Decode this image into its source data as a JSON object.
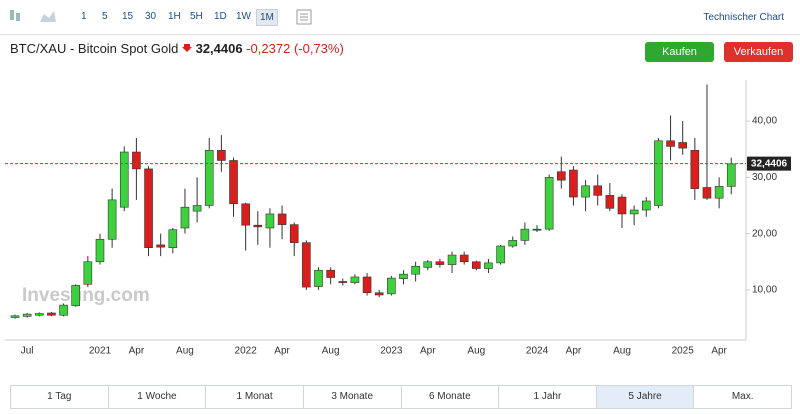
{
  "toolbar": {
    "intervals": [
      "1",
      "5",
      "15",
      "30",
      "1H",
      "5H",
      "1D",
      "1W",
      "1M"
    ],
    "selected": 8,
    "link": "Technischer Chart"
  },
  "header": {
    "title": "BTC/XAU - Bitcoin Spot Gold",
    "price": "32,4406",
    "change": "-0,2372",
    "change_pct": "(-0,73%)"
  },
  "buttons": {
    "buy": "Kaufen",
    "sell": "Verkaufen"
  },
  "chart_data": {
    "type": "candlestick",
    "watermark": "Investing.com",
    "categories": [
      null,
      "Jul",
      null,
      null,
      null,
      null,
      null,
      "2021",
      null,
      null,
      "Apr",
      null,
      null,
      null,
      "Aug",
      null,
      null,
      null,
      null,
      "2022",
      null,
      null,
      "Apr",
      null,
      null,
      null,
      "Aug",
      null,
      null,
      null,
      null,
      "2023",
      null,
      null,
      "Apr",
      null,
      null,
      null,
      "Aug",
      null,
      null,
      null,
      null,
      "2024",
      null,
      null,
      "Apr",
      null,
      null,
      null,
      "Aug",
      null,
      null,
      null,
      null,
      "2025",
      null,
      null,
      "Apr",
      null
    ],
    "open": [
      5.1,
      5.3,
      5.5,
      5.9,
      5.5,
      7.2,
      11,
      15,
      19,
      24.7,
      34.5,
      31.5,
      18,
      17.5,
      21,
      24,
      25,
      34.8,
      33,
      25.3,
      21.5,
      21,
      23.5,
      21.6,
      18.4,
      10.6,
      13.5,
      11.5,
      11.3,
      12.3,
      9.5,
      9.3,
      12,
      12.8,
      14,
      15,
      14.5,
      16.2,
      15,
      13.8,
      14.8,
      17.8,
      18.8,
      20.8,
      20.8,
      31,
      31.3,
      26.5,
      28.5,
      26.8,
      26.5,
      23.5,
      24.2,
      25,
      36.5,
      36.2,
      34.8,
      28.2,
      26.3,
      28.4
    ],
    "high": [
      5.6,
      5.9,
      6,
      6.1,
      7.6,
      11,
      16,
      20,
      28,
      35.5,
      37,
      32,
      20,
      21,
      28,
      30,
      37,
      37.5,
      33.5,
      25.5,
      24,
      24.5,
      25,
      22,
      18.8,
      14,
      14,
      12,
      12.8,
      13,
      10,
      12.5,
      13.5,
      15,
      15.3,
      15.5,
      16.8,
      16.8,
      15.2,
      15.5,
      18,
      19.5,
      22,
      21.5,
      30.5,
      33.7,
      32,
      29.5,
      30.5,
      29,
      27,
      25,
      26.5,
      37,
      41,
      40,
      37,
      46.5,
      30,
      33.5
    ],
    "low": [
      4.9,
      5.1,
      5.3,
      5.3,
      5.3,
      7,
      10.5,
      14.5,
      17.5,
      24,
      26,
      16,
      16,
      16.5,
      20,
      22,
      24.5,
      31,
      23,
      17,
      18,
      17.5,
      19,
      16,
      10,
      10,
      11,
      10.8,
      11,
      9,
      8.7,
      9,
      11,
      11.5,
      13.5,
      14,
      13,
      14.5,
      13.5,
      13,
      14.5,
      17.5,
      18,
      20.3,
      20.5,
      28,
      25,
      24,
      25,
      24,
      21,
      21.5,
      23,
      24.5,
      33,
      34,
      26,
      26,
      24.5,
      27
    ],
    "close": [
      5.4,
      5.7,
      5.8,
      5.5,
      7.3,
      10.8,
      15,
      19,
      26,
      34.5,
      31.5,
      17.5,
      17.6,
      20.7,
      24.7,
      25,
      34.8,
      33,
      25.3,
      21.5,
      21.2,
      23.5,
      21.6,
      18.4,
      10.5,
      13.5,
      12.2,
      11.3,
      12.3,
      9.5,
      9.1,
      12.1,
      12.8,
      14.2,
      15,
      14.5,
      16.2,
      15,
      13.8,
      14.8,
      17.8,
      18.8,
      20.8,
      20.6,
      30,
      29.5,
      26.5,
      28.5,
      26.8,
      24.5,
      23.5,
      24.2,
      25.8,
      36.5,
      35.5,
      35.2,
      28,
      26.3,
      28.4,
      32.4
    ],
    "up_color": "#3ed13e",
    "down_color": "#d91e1e",
    "ylim": [
      1.1,
      47.3
    ],
    "yticks": [
      {
        "value": 10,
        "label": "10,00"
      },
      {
        "value": 20,
        "label": "20,00"
      },
      {
        "value": 30,
        "label": "30,00"
      },
      {
        "value": 40,
        "label": "40,00"
      }
    ],
    "last_price": {
      "value": 32.4406,
      "label": "32,4406"
    },
    "grid": false
  },
  "range_tabs": {
    "items": [
      "1 Tag",
      "1 Woche",
      "1 Monat",
      "3 Monate",
      "6 Monate",
      "1 Jahr",
      "5 Jahre",
      "Max."
    ],
    "selected": 6
  }
}
